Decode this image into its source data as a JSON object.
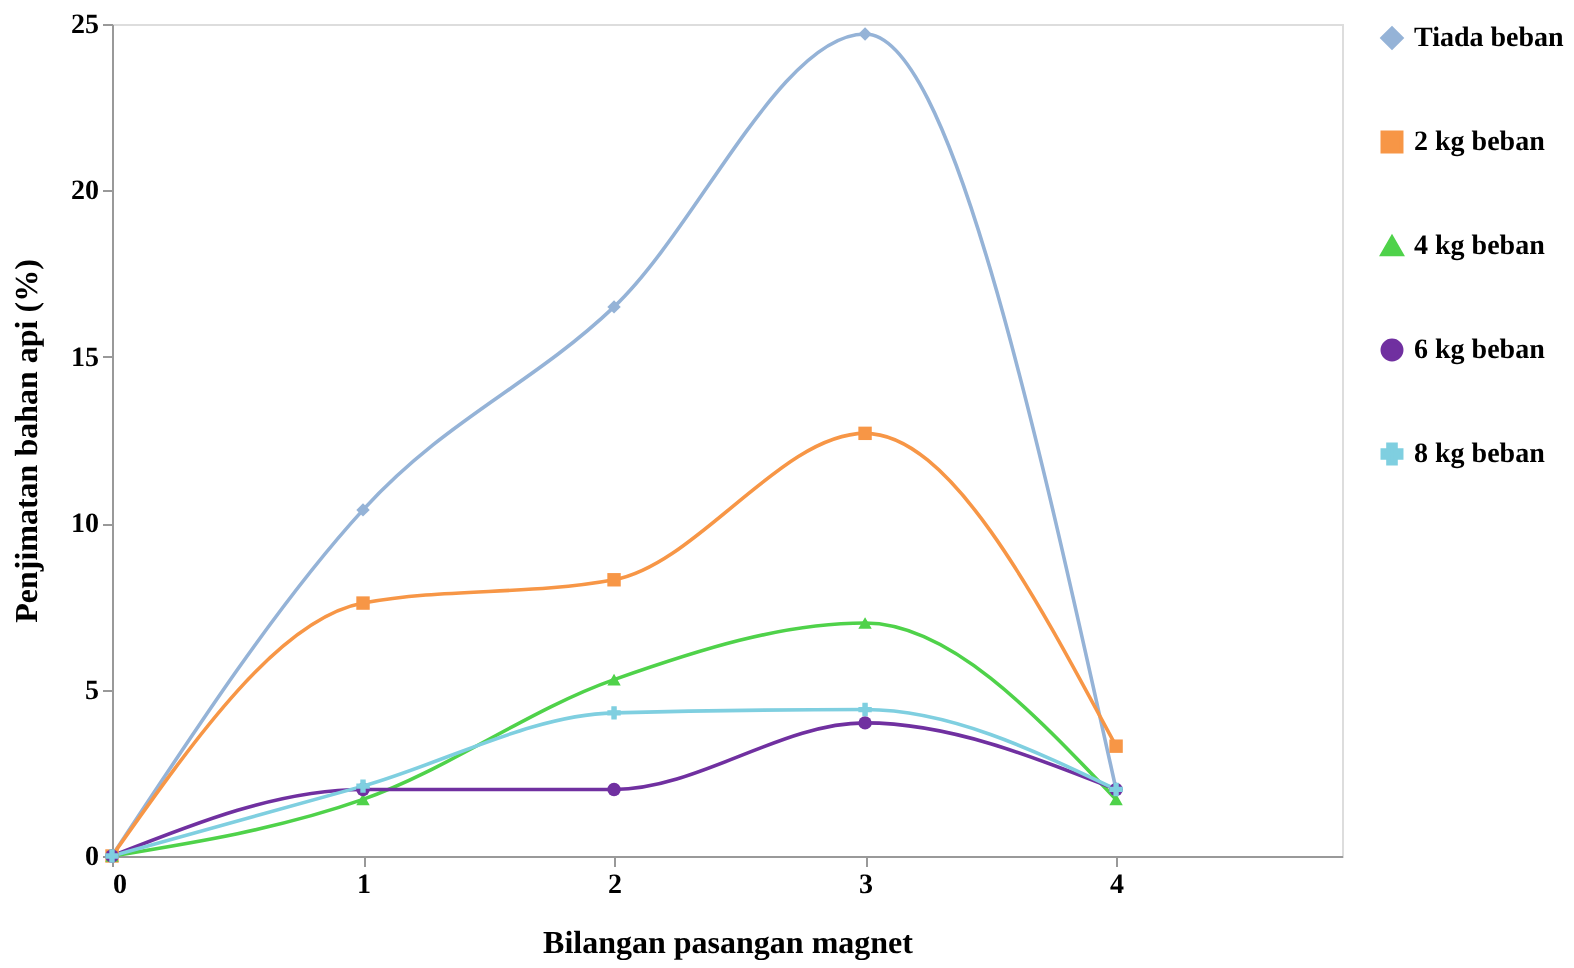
{
  "chart_data": {
    "type": "line",
    "xlabel": "Bilangan pasangan magnet",
    "ylabel": "Penjimatan bahan api (%)",
    "x": [
      0,
      1,
      2,
      3,
      4
    ],
    "xlim": [
      0,
      4.9
    ],
    "xticks": [
      0,
      1,
      2,
      3,
      4
    ],
    "ylim": [
      0,
      25
    ],
    "yticks": [
      0,
      5,
      10,
      15,
      20,
      25
    ],
    "grid": false,
    "legend": "right",
    "line_style": "solid",
    "series": [
      {
        "name": "Tiada beban",
        "color": "#95b3d7",
        "marker": "diamond",
        "values": [
          0,
          10.4,
          16.5,
          24.7,
          2.0
        ]
      },
      {
        "name": "2 kg beban",
        "color": "#f79646",
        "marker": "square",
        "values": [
          0,
          7.6,
          8.3,
          12.7,
          3.3
        ]
      },
      {
        "name": "4 kg beban",
        "color": "#4fd24a",
        "marker": "triangle",
        "values": [
          0,
          1.7,
          5.3,
          7.0,
          1.7
        ]
      },
      {
        "name": "6 kg beban",
        "color": "#7030a0",
        "marker": "circle",
        "values": [
          0,
          2.0,
          2.0,
          4.0,
          2.0
        ]
      },
      {
        "name": "8 kg beban",
        "color": "#7fcfe0",
        "marker": "cross",
        "values": [
          0,
          2.1,
          4.3,
          4.4,
          2.0
        ]
      }
    ]
  }
}
